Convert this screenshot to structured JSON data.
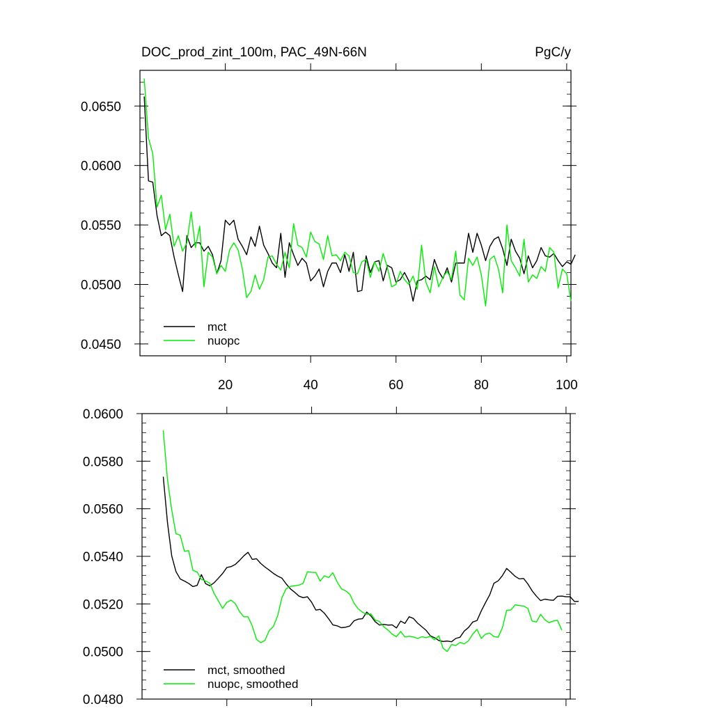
{
  "chart_data": [
    {
      "type": "line",
      "title": "DOC_prod_zint_100m, PAC_49N-66N",
      "units": "PgC/y",
      "xlim": [
        0,
        101
      ],
      "ylim": [
        0.044,
        0.068
      ],
      "y_tick_labels": [
        "0.0450",
        "0.0500",
        "0.0550",
        "0.0600",
        "0.0650"
      ],
      "y_tick_values": [
        0.045,
        0.05,
        0.055,
        0.06,
        0.065
      ],
      "x_tick_labels": [
        "20",
        "40",
        "60",
        "80",
        "100"
      ],
      "x_tick_values": [
        20,
        40,
        60,
        80,
        100
      ],
      "legend_position": "bottom-left",
      "series": [
        {
          "name": "mct",
          "color": "#000000",
          "x_start": 1,
          "values": [
            0.0658,
            0.0587,
            0.0586,
            0.0558,
            0.0541,
            0.0544,
            0.0541,
            0.0523,
            0.0508,
            0.0494,
            0.0541,
            0.0531,
            0.0535,
            0.0535,
            0.0528,
            0.0532,
            0.0525,
            0.0509,
            0.052,
            0.0554,
            0.055,
            0.0554,
            0.0538,
            0.0532,
            0.0525,
            0.054,
            0.0532,
            0.0549,
            0.0533,
            0.0526,
            0.0518,
            0.0514,
            0.0543,
            0.0506,
            0.0535,
            0.0525,
            0.0516,
            0.0522,
            0.0518,
            0.0503,
            0.0507,
            0.0513,
            0.0498,
            0.0511,
            0.0518,
            0.0518,
            0.051,
            0.0525,
            0.0511,
            0.0527,
            0.0494,
            0.0495,
            0.0524,
            0.051,
            0.0519,
            0.052,
            0.0503,
            0.0516,
            0.0514,
            0.0502,
            0.0504,
            0.051,
            0.0503,
            0.0486,
            0.0503,
            0.0504,
            0.0507,
            0.0504,
            0.0521,
            0.0511,
            0.0505,
            0.0514,
            0.0502,
            0.0518,
            0.0518,
            0.0518,
            0.0543,
            0.0527,
            0.0543,
            0.0533,
            0.052,
            0.0532,
            0.0538,
            0.054,
            0.053,
            0.0516,
            0.0538,
            0.0528,
            0.0522,
            0.0509,
            0.0524,
            0.0514,
            0.052,
            0.0531,
            0.0524,
            0.0523,
            0.0526,
            0.052,
            0.0515,
            0.0519,
            0.0517,
            0.0525
          ]
        },
        {
          "name": "nuopc",
          "color": "#00ee00",
          "x_start": 1,
          "values": [
            0.0673,
            0.0623,
            0.061,
            0.0565,
            0.0575,
            0.0546,
            0.0559,
            0.0532,
            0.0541,
            0.0528,
            0.0535,
            0.0561,
            0.0531,
            0.0549,
            0.0498,
            0.0527,
            0.0523,
            0.0509,
            0.0516,
            0.0511,
            0.0529,
            0.0535,
            0.0529,
            0.0513,
            0.0489,
            0.0494,
            0.0508,
            0.0496,
            0.0504,
            0.0523,
            0.0524,
            0.0517,
            0.0512,
            0.0527,
            0.0514,
            0.0551,
            0.0533,
            0.0531,
            0.0523,
            0.0544,
            0.0536,
            0.0534,
            0.0521,
            0.0541,
            0.0524,
            0.0525,
            0.052,
            0.0527,
            0.0524,
            0.051,
            0.0509,
            0.0519,
            0.0521,
            0.0506,
            0.0519,
            0.0511,
            0.0526,
            0.0514,
            0.0498,
            0.05,
            0.0511,
            0.0504,
            0.05,
            0.0507,
            0.0496,
            0.0533,
            0.0502,
            0.0493,
            0.0515,
            0.0498,
            0.0506,
            0.0511,
            0.0504,
            0.0528,
            0.0491,
            0.0487,
            0.0522,
            0.0516,
            0.0523,
            0.0508,
            0.0482,
            0.0521,
            0.0524,
            0.0513,
            0.0493,
            0.055,
            0.052,
            0.0514,
            0.0507,
            0.0538,
            0.0502,
            0.0508,
            0.0505,
            0.0515,
            0.0511,
            0.0531,
            0.0527,
            0.0497,
            0.0513,
            0.0509,
            0.0486
          ]
        }
      ]
    },
    {
      "type": "line",
      "xlim": [
        0,
        101
      ],
      "ylim": [
        0.048,
        0.06
      ],
      "y_tick_labels": [
        "0.0480",
        "0.0500",
        "0.0520",
        "0.0540",
        "0.0560",
        "0.0580",
        "0.0600"
      ],
      "y_tick_values": [
        0.048,
        0.05,
        0.052,
        0.054,
        0.056,
        0.058,
        0.06
      ],
      "x_tick_values": [
        20,
        40,
        60,
        80,
        100
      ],
      "legend_position": "bottom-left",
      "series": [
        {
          "name": "mct, smoothed",
          "color": "#000000",
          "x_start": 5,
          "values": [
            0.05735,
            0.05542,
            0.05402,
            0.05336,
            0.05305,
            0.05296,
            0.05286,
            0.05273,
            0.05278,
            0.05323,
            0.05285,
            0.05276,
            0.05289,
            0.05308,
            0.05328,
            0.05353,
            0.05357,
            0.05366,
            0.05383,
            0.05402,
            0.05417,
            0.05387,
            0.0539,
            0.0537,
            0.05355,
            0.05342,
            0.05328,
            0.05317,
            0.05308,
            0.05284,
            0.05263,
            0.05249,
            0.05233,
            0.05226,
            0.0523,
            0.05207,
            0.05174,
            0.05177,
            0.05161,
            0.05138,
            0.05112,
            0.05108,
            0.051,
            0.05102,
            0.05107,
            0.05129,
            0.05136,
            0.05138,
            0.05166,
            0.05149,
            0.05125,
            0.05111,
            0.05114,
            0.05111,
            0.05112,
            0.05099,
            0.05128,
            0.05118,
            0.05146,
            0.05139,
            0.05119,
            0.05104,
            0.05089,
            0.05066,
            0.05058,
            0.05046,
            0.05042,
            0.05044,
            0.05041,
            0.05055,
            0.0506,
            0.05086,
            0.05101,
            0.05124,
            0.0513,
            0.0517,
            0.05205,
            0.05238,
            0.05287,
            0.05297,
            0.05319,
            0.05349,
            0.05333,
            0.05316,
            0.05305,
            0.05307,
            0.05284,
            0.05255,
            0.05233,
            0.05214,
            0.0522,
            0.05217,
            0.05215,
            0.05232,
            0.05233,
            0.0523,
            0.0523,
            0.0521,
            0.05211
          ]
        },
        {
          "name": "nuopc, smoothed",
          "color": "#00ee00",
          "x_start": 5,
          "values": [
            0.0593,
            0.05723,
            0.05595,
            0.05495,
            0.05489,
            0.05421,
            0.05424,
            0.05341,
            0.05334,
            0.05303,
            0.05296,
            0.05287,
            0.05244,
            0.05213,
            0.05181,
            0.05207,
            0.05216,
            0.05201,
            0.05168,
            0.05146,
            0.05146,
            0.05107,
            0.05051,
            0.05037,
            0.05047,
            0.05088,
            0.05106,
            0.05151,
            0.05227,
            0.05264,
            0.05274,
            0.05276,
            0.05279,
            0.05287,
            0.05335,
            0.05333,
            0.05332,
            0.05296,
            0.05318,
            0.05311,
            0.05331,
            0.05293,
            0.05264,
            0.05255,
            0.05241,
            0.05203,
            0.05179,
            0.05165,
            0.05156,
            0.05158,
            0.05132,
            0.05126,
            0.05104,
            0.0509,
            0.05073,
            0.05062,
            0.05084,
            0.05061,
            0.05064,
            0.05061,
            0.05055,
            0.05062,
            0.05058,
            0.05064,
            0.05049,
            0.05066,
            0.05014,
            0.05,
            0.0503,
            0.05025,
            0.05038,
            0.05032,
            0.05045,
            0.05073,
            0.05093,
            0.05055,
            0.05073,
            0.05077,
            0.05063,
            0.0506,
            0.051,
            0.05173,
            0.05175,
            0.05196,
            0.05193,
            0.05191,
            0.05181,
            0.05128,
            0.05124,
            0.05156,
            0.05134,
            0.05121,
            0.05128,
            0.05131,
            0.0509
          ]
        }
      ]
    }
  ]
}
